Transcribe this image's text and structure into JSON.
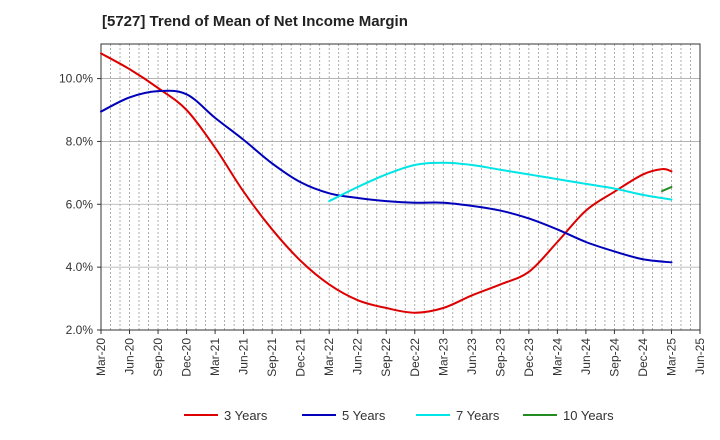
{
  "title": "[5727]  Trend of Mean of Net Income Margin",
  "chart_data": {
    "type": "line",
    "title": "[5727]  Trend of Mean of Net Income Margin",
    "xlabel": "",
    "ylabel": "",
    "x_tick_labels": [
      "Mar-20",
      "Jun-20",
      "Sep-20",
      "Dec-20",
      "Mar-21",
      "Jun-21",
      "Sep-21",
      "Dec-21",
      "Mar-22",
      "Jun-22",
      "Sep-22",
      "Dec-22",
      "Mar-23",
      "Jun-23",
      "Sep-23",
      "Dec-23",
      "Mar-24",
      "Jun-24",
      "Sep-24",
      "Dec-24",
      "Mar-25",
      "Jun-25"
    ],
    "y_tick_labels": [
      "2.0%",
      "4.0%",
      "6.0%",
      "8.0%",
      "10.0%"
    ],
    "y_ticks": [
      2,
      4,
      6,
      8,
      10
    ],
    "ylim": [
      2,
      11.1
    ],
    "x_range_quarters": [
      0,
      21
    ],
    "grid": "vertical dashed lines at each month, horizontal lines at y ticks",
    "legend_position": "bottom",
    "series": [
      {
        "name": "3 Years",
        "color": "#dd0000",
        "x": [
          0,
          1,
          2,
          3,
          4,
          5,
          6,
          7,
          8,
          9,
          10,
          11,
          12,
          13,
          14,
          15,
          16,
          17,
          18,
          19,
          19.67,
          20
        ],
        "y": [
          10.8,
          10.3,
          9.7,
          9.0,
          7.8,
          6.4,
          5.2,
          4.2,
          3.45,
          2.95,
          2.7,
          2.55,
          2.7,
          3.1,
          3.45,
          3.85,
          4.8,
          5.8,
          6.4,
          6.95,
          7.12,
          7.05
        ]
      },
      {
        "name": "5 Years",
        "color": "#0000bb",
        "x": [
          0,
          1,
          2,
          3,
          4,
          5,
          6,
          7,
          8,
          9,
          10,
          11,
          12,
          13,
          14,
          15,
          16,
          17,
          18,
          19,
          20
        ],
        "y": [
          8.95,
          9.4,
          9.6,
          9.5,
          8.75,
          8.05,
          7.3,
          6.7,
          6.35,
          6.2,
          6.1,
          6.05,
          6.05,
          5.95,
          5.8,
          5.55,
          5.2,
          4.8,
          4.5,
          4.25,
          4.15
        ]
      },
      {
        "name": "7 Years",
        "color": "#00e5e5",
        "x": [
          8,
          9,
          10,
          11,
          12,
          13,
          14,
          15,
          16,
          17,
          18,
          19,
          20
        ],
        "y": [
          6.1,
          6.55,
          6.95,
          7.25,
          7.32,
          7.25,
          7.1,
          6.95,
          6.8,
          6.65,
          6.5,
          6.3,
          6.15
        ]
      },
      {
        "name": "10 Years",
        "color": "#228b22",
        "x": [
          19.67,
          20
        ],
        "y": [
          6.42,
          6.55
        ]
      }
    ]
  }
}
